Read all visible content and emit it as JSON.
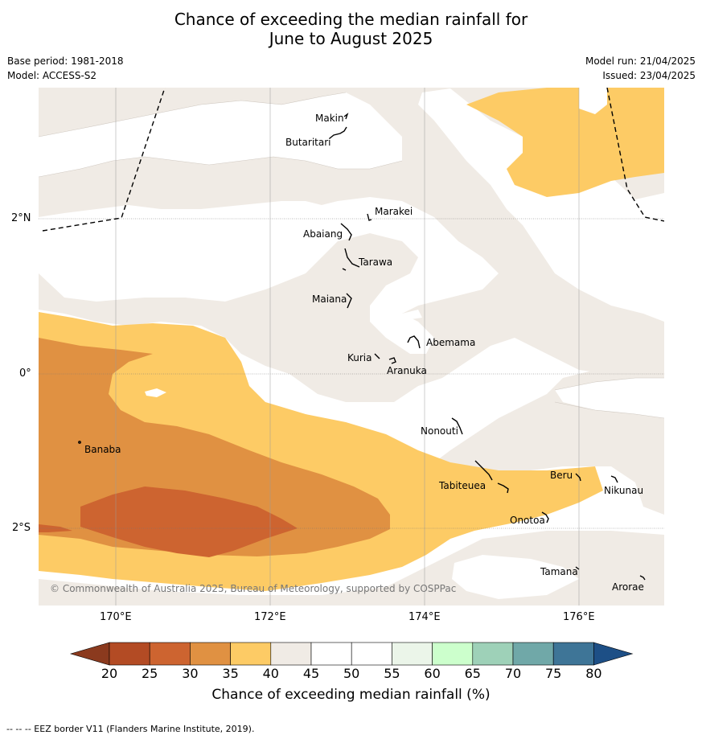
{
  "title": {
    "line1": "Chance of exceeding the median rainfall for",
    "line2": "June to August 2025"
  },
  "meta": {
    "base_period": "Base period: 1981-2018",
    "model": "Model: ACCESS-S2",
    "model_run": "Model run: 21/04/2025",
    "issued": "Issued: 23/04/2025"
  },
  "axes": {
    "x_ticks": [
      "170°E",
      "172°E",
      "174°E",
      "176°E"
    ],
    "y_ticks": [
      "2°N",
      "0°",
      "2°S"
    ]
  },
  "places": {
    "makin": "Makin",
    "butaritari": "Butaritari",
    "marakei": "Marakei",
    "abaiang": "Abaiang",
    "tarawa": "Tarawa",
    "maiana": "Maiana",
    "abemama": "Abemama",
    "kuria": "Kuria",
    "aranuka": "Aranuka",
    "banaba": "Banaba",
    "nonouti": "Nonouti",
    "tabiteuea": "Tabiteuea",
    "beru": "Beru",
    "nikunau": "Nikunau",
    "onotoa": "Onotoa",
    "tamana": "Tamana",
    "arorae": "Arorae"
  },
  "copyright": "© Commonwealth of Australia 2025, Bureau of Meteorology, supported by COSPPac",
  "legend": {
    "title": "Chance of exceeding median rainfall (%)",
    "labels": [
      "20",
      "25",
      "30",
      "35",
      "40",
      "45",
      "50",
      "55",
      "60",
      "65",
      "70",
      "75",
      "80"
    ],
    "colors": [
      "#8b3a1e",
      "#b34b24",
      "#cd6430",
      "#e09142",
      "#fdcb65",
      "#f0ebe5",
      "#ffffff",
      "#ffffff",
      "#ebf5e9",
      "#ccffcc",
      "#9ed1b8",
      "#70a8a8",
      "#3e7597",
      "#1d4f86"
    ]
  },
  "footer": "--  --  -- EEZ border V11 (Flanders Marine Institute, 2019)."
}
